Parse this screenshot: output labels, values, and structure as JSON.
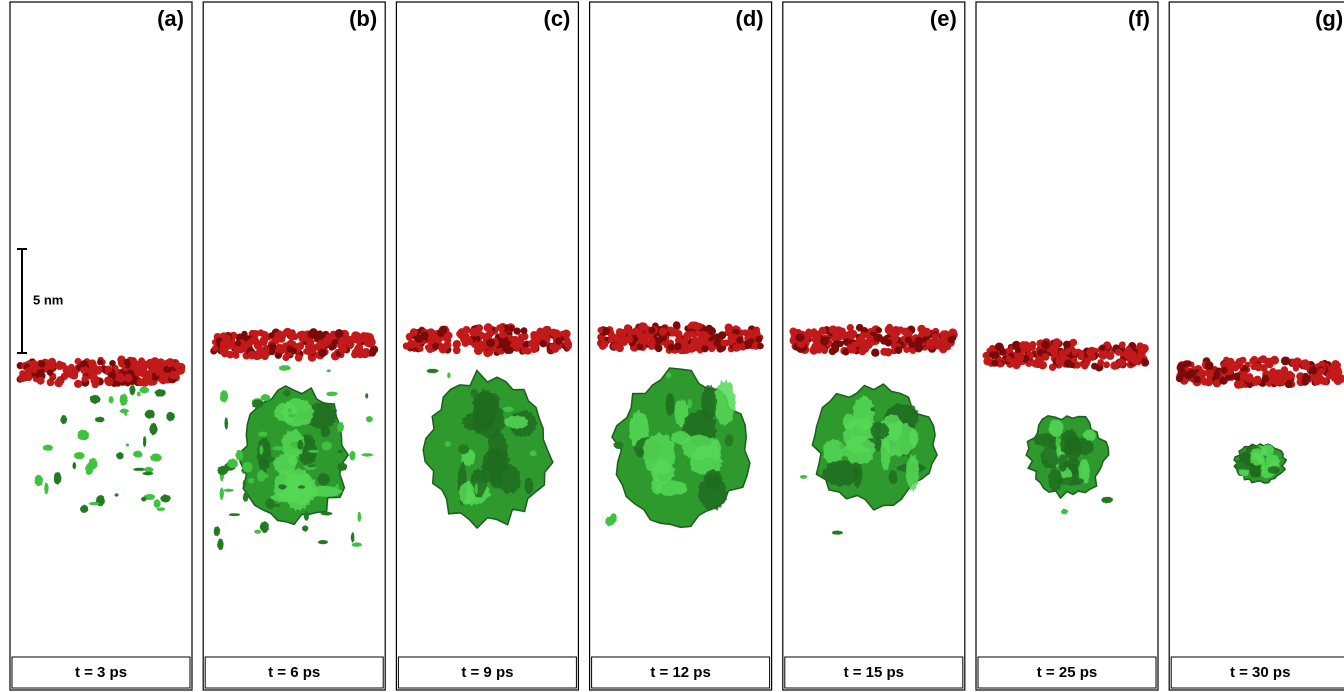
{
  "figure": {
    "scale_bar": "5 nm",
    "panels": [
      {
        "label": "(a)",
        "caption": "t = 3 ps"
      },
      {
        "label": "(b)",
        "caption": "t = 6 ps"
      },
      {
        "label": "(c)",
        "caption": "t = 9 ps"
      },
      {
        "label": "(d)",
        "caption": "t = 12 ps"
      },
      {
        "label": "(e)",
        "caption": "t = 15 ps"
      },
      {
        "label": "(f)",
        "caption": "t = 25 ps"
      },
      {
        "label": "(g)",
        "caption": "t = 30 ps"
      }
    ]
  }
}
